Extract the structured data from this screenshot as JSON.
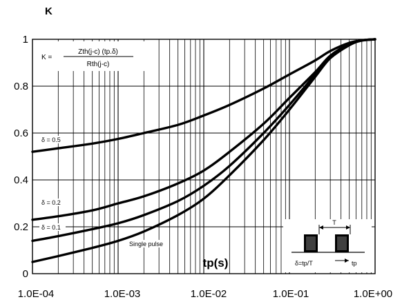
{
  "chart_data": {
    "type": "line",
    "ylabel": "K",
    "xlabel": "tp(s)",
    "x_scale": "log",
    "xlim": [
      0.0001,
      1
    ],
    "ylim": [
      0,
      1
    ],
    "x_ticks": [
      "1.0E-04",
      "1.0E-03",
      "1.0E-02",
      "1.0E-01",
      "1.0E+00"
    ],
    "y_ticks": [
      "0",
      "0.2",
      "0.4",
      "0.6",
      "0.8",
      "1"
    ],
    "grid": true,
    "formula": {
      "lhs": "K =",
      "numerator": "Zth(j-c) (tp.δ)",
      "denominator": "Rth(j-c)"
    },
    "series": [
      {
        "name": "δ = 0.5",
        "points": [
          [
            0.0001,
            0.52
          ],
          [
            0.0002,
            0.535
          ],
          [
            0.0005,
            0.555
          ],
          [
            0.001,
            0.575
          ],
          [
            0.002,
            0.6
          ],
          [
            0.005,
            0.635
          ],
          [
            0.01,
            0.675
          ],
          [
            0.02,
            0.72
          ],
          [
            0.05,
            0.79
          ],
          [
            0.1,
            0.85
          ],
          [
            0.2,
            0.91
          ],
          [
            0.3,
            0.95
          ],
          [
            0.5,
            0.985
          ],
          [
            0.7,
            0.995
          ],
          [
            1,
            1
          ]
        ]
      },
      {
        "name": "δ = 0.2",
        "points": [
          [
            0.0001,
            0.23
          ],
          [
            0.0002,
            0.245
          ],
          [
            0.0005,
            0.27
          ],
          [
            0.001,
            0.3
          ],
          [
            0.002,
            0.33
          ],
          [
            0.005,
            0.385
          ],
          [
            0.01,
            0.44
          ],
          [
            0.02,
            0.52
          ],
          [
            0.05,
            0.64
          ],
          [
            0.1,
            0.75
          ],
          [
            0.2,
            0.86
          ],
          [
            0.3,
            0.93
          ],
          [
            0.5,
            0.98
          ],
          [
            0.7,
            0.995
          ],
          [
            1,
            1
          ]
        ]
      },
      {
        "name": "δ = 0.1",
        "points": [
          [
            0.0001,
            0.14
          ],
          [
            0.0002,
            0.16
          ],
          [
            0.0005,
            0.19
          ],
          [
            0.001,
            0.215
          ],
          [
            0.002,
            0.25
          ],
          [
            0.005,
            0.31
          ],
          [
            0.01,
            0.375
          ],
          [
            0.02,
            0.46
          ],
          [
            0.05,
            0.6
          ],
          [
            0.1,
            0.72
          ],
          [
            0.2,
            0.85
          ],
          [
            0.3,
            0.92
          ],
          [
            0.5,
            0.975
          ],
          [
            0.7,
            0.995
          ],
          [
            1,
            1
          ]
        ]
      },
      {
        "name": "Single pulse",
        "points": [
          [
            0.0001,
            0.05
          ],
          [
            0.0002,
            0.075
          ],
          [
            0.0005,
            0.11
          ],
          [
            0.001,
            0.14
          ],
          [
            0.002,
            0.18
          ],
          [
            0.005,
            0.25
          ],
          [
            0.01,
            0.32
          ],
          [
            0.02,
            0.42
          ],
          [
            0.05,
            0.57
          ],
          [
            0.1,
            0.7
          ],
          [
            0.2,
            0.84
          ],
          [
            0.3,
            0.92
          ],
          [
            0.5,
            0.975
          ],
          [
            0.7,
            0.995
          ],
          [
            1,
            1
          ]
        ]
      }
    ],
    "inset": {
      "period_label": "T",
      "pulse_label": "tp",
      "duty_label": "δ=tp/T"
    }
  }
}
